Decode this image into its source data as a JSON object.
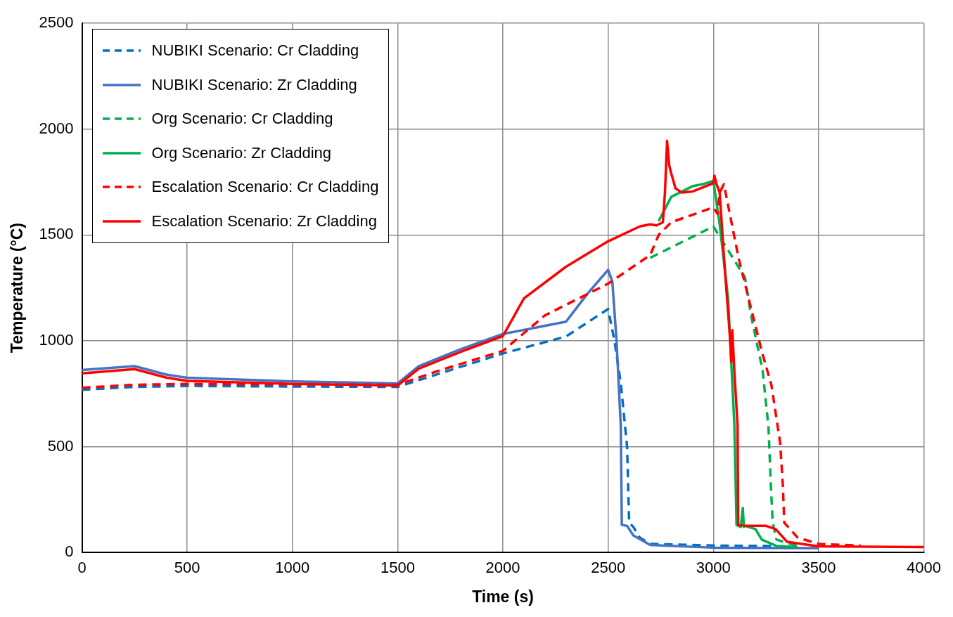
{
  "chart_data": {
    "type": "line",
    "xlabel": "Time (s)",
    "ylabel": "Temperature (°C)",
    "xlim": [
      0,
      4000
    ],
    "xticks": [
      0,
      500,
      1000,
      1500,
      2000,
      2500,
      3000,
      3500,
      4000
    ],
    "ylim": [
      0,
      2500
    ],
    "yticks": [
      0,
      500,
      1000,
      1500,
      2000,
      2500
    ],
    "grid": true,
    "legend": "top left",
    "marker": "none",
    "series": [
      {
        "name": "NUBIKI Scenario: Cr Cladding",
        "color": "#0070c0",
        "line_style": "dashed",
        "x": [
          0,
          250,
          500,
          1000,
          1500,
          2000,
          2300,
          2500,
          2530,
          2560,
          2590,
          2600,
          2620,
          2650,
          2700,
          3000,
          3300
        ],
        "values": [
          768,
          782,
          786,
          784,
          782,
          940,
          1020,
          1150,
          1000,
          800,
          500,
          140,
          120,
          70,
          40,
          32,
          30
        ]
      },
      {
        "name": "NUBIKI Scenario: Zr Cladding",
        "color": "#4472c4",
        "line_style": "solid",
        "x": [
          0,
          250,
          400,
          500,
          1000,
          1500,
          1600,
          1800,
          2000,
          2300,
          2400,
          2500,
          2520,
          2540,
          2560,
          2565,
          2590,
          2620,
          2700,
          3000,
          3500
        ],
        "values": [
          862,
          880,
          840,
          825,
          808,
          798,
          880,
          960,
          1032,
          1090,
          1220,
          1335,
          1280,
          1000,
          600,
          130,
          125,
          80,
          35,
          22,
          20
        ]
      },
      {
        "name": "Org Scenario: Cr Cladding",
        "color": "#00b050",
        "line_style": "dashed",
        "x": [
          2700,
          3000,
          3050,
          3100,
          3150,
          3179,
          3234,
          3262,
          3273,
          3282,
          3300,
          3400
        ],
        "values": [
          1392,
          1540,
          1460,
          1380,
          1300,
          1120,
          860,
          590,
          320,
          140,
          60,
          30
        ]
      },
      {
        "name": "Org Scenario: Zr Cladding",
        "color": "#00b050",
        "line_style": "solid",
        "x": [
          2740,
          2800,
          2900,
          2950,
          3000,
          3030,
          3070,
          3100,
          3110,
          3130,
          3140,
          3145,
          3150,
          3200,
          3230,
          3300,
          3400
        ],
        "values": [
          1565,
          1680,
          1730,
          1740,
          1755,
          1550,
          1200,
          600,
          130,
          120,
          210,
          120,
          125,
          110,
          60,
          30,
          25
        ]
      },
      {
        "name": "Escalation Scenario: Cr Cladding",
        "color": "#ff0000",
        "line_style": "dashed",
        "x": [
          0,
          250,
          500,
          1000,
          1500,
          1700,
          2000,
          2200,
          2500,
          2700,
          2740,
          2800,
          3000,
          3020,
          3030,
          3050,
          3080,
          3120,
          3180,
          3230,
          3276,
          3317,
          3330,
          3337,
          3400,
          3500,
          3700
        ],
        "values": [
          778,
          792,
          796,
          794,
          792,
          860,
          952,
          1120,
          1270,
          1405,
          1500,
          1560,
          1630,
          1600,
          1700,
          1740,
          1590,
          1390,
          1150,
          950,
          790,
          520,
          320,
          140,
          70,
          40,
          32
        ]
      },
      {
        "name": "Escalation Scenario: Zr Cladding",
        "color": "#ff0000",
        "line_style": "solid",
        "x": [
          0,
          250,
          400,
          500,
          1000,
          1500,
          1600,
          1800,
          2000,
          2100,
          2300,
          2500,
          2650,
          2700,
          2730,
          2760,
          2770,
          2780,
          2790,
          2800,
          2820,
          2850,
          2900,
          3000,
          3005,
          3015,
          3030,
          3050,
          3080,
          3085,
          3090,
          3100,
          3115,
          3118,
          3150,
          3250,
          3296,
          3350,
          3500,
          4000
        ],
        "values": [
          846,
          866,
          826,
          810,
          796,
          788,
          868,
          948,
          1022,
          1200,
          1350,
          1470,
          1540,
          1550,
          1545,
          1560,
          1700,
          1945,
          1830,
          1790,
          1720,
          1700,
          1705,
          1745,
          1780,
          1740,
          1700,
          1400,
          1000,
          900,
          1050,
          850,
          600,
          130,
          125,
          125,
          110,
          50,
          28,
          25
        ]
      }
    ]
  }
}
